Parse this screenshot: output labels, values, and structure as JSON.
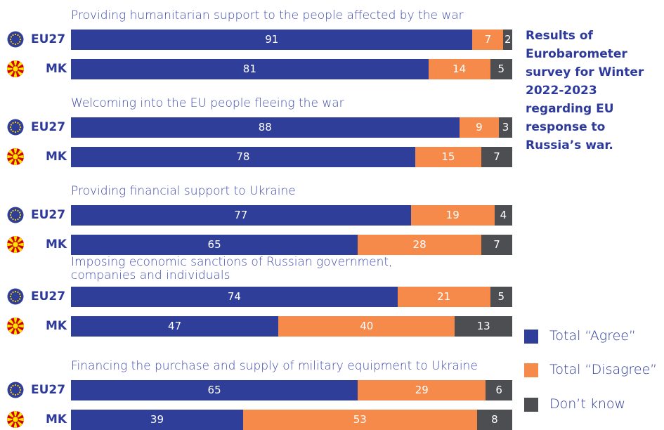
{
  "chart_data": {
    "type": "bar",
    "orientation": "horizontal",
    "stacked": true,
    "title": "Results of Eurobarometer survey for Winter 2022-2023 regarding EU response to Russia’s war.",
    "colors": {
      "agree": "#2f3e98",
      "disagree": "#f58a4b",
      "dont_know": "#4d4e52",
      "text": "#2d3a9c"
    },
    "legend": {
      "position": "bottom-right",
      "items": [
        {
          "key": "agree",
          "label": "Total “Agree”"
        },
        {
          "key": "disagree",
          "label": "Total “Disagree”"
        },
        {
          "key": "dont_know",
          "label": "Don’t know"
        }
      ]
    },
    "groups": [
      {
        "question": "Providing humanitarian support to the people affected by the war",
        "rows": [
          {
            "country": "EU27",
            "flag": "eu-flag-icon",
            "agree": 91,
            "disagree": 7,
            "dont_know": 2
          },
          {
            "country": "MK",
            "flag": "mk-flag-icon",
            "agree": 81,
            "disagree": 14,
            "dont_know": 5
          }
        ]
      },
      {
        "question": "Welcoming into the EU people fleeing the war",
        "rows": [
          {
            "country": "EU27",
            "flag": "eu-flag-icon",
            "agree": 88,
            "disagree": 9,
            "dont_know": 3
          },
          {
            "country": "MK",
            "flag": "mk-flag-icon",
            "agree": 78,
            "disagree": 15,
            "dont_know": 7
          }
        ]
      },
      {
        "question": "Providing financial support to Ukraine",
        "rows": [
          {
            "country": "EU27",
            "flag": "eu-flag-icon",
            "agree": 77,
            "disagree": 19,
            "dont_know": 4
          },
          {
            "country": "MK",
            "flag": "mk-flag-icon",
            "agree": 65,
            "disagree": 28,
            "dont_know": 7
          }
        ]
      },
      {
        "question": "Imposing economic sanctions of Russian government, companies and individuals",
        "rows": [
          {
            "country": "EU27",
            "flag": "eu-flag-icon",
            "agree": 74,
            "disagree": 21,
            "dont_know": 5
          },
          {
            "country": "MK",
            "flag": "mk-flag-icon",
            "agree": 47,
            "disagree": 40,
            "dont_know": 13
          }
        ]
      },
      {
        "question": "Financing the purchase and supply of military equipment to Ukraine",
        "rows": [
          {
            "country": "EU27",
            "flag": "eu-flag-icon",
            "agree": 65,
            "disagree": 29,
            "dont_know": 6
          },
          {
            "country": "MK",
            "flag": "mk-flag-icon",
            "agree": 39,
            "disagree": 53,
            "dont_know": 8
          }
        ]
      }
    ]
  }
}
